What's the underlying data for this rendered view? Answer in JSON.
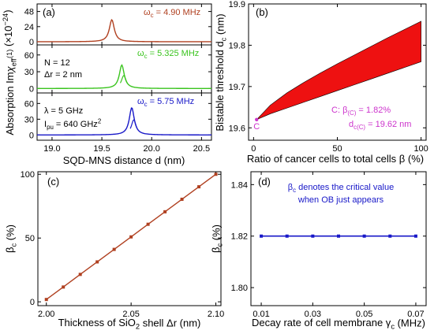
{
  "chart_data": [
    {
      "panel": "(a)",
      "type": "line",
      "xlabel": "SQD-MNS distance d (nm)",
      "ylabel_prefix": "Absorption Im",
      "ylabel_chi": "χ",
      "ylabel_sub": "eff",
      "ylabel_sup": "(1)",
      "ylabel_unit": " (×10",
      "ylabel_unit_sup": "−24",
      "ylabel_unit_end": ")",
      "xlim": [
        18.85,
        20.6
      ],
      "x_ticks": [
        "19.0",
        "19.5",
        "20.0",
        "20.5"
      ],
      "x_tick_values": [
        19.0,
        19.5,
        20.0,
        20.5
      ],
      "params": {
        "N": "N = 12",
        "dr": "Δr = 2 nm",
        "lambda": "λ = 5 GHz",
        "ipu_prefix": "I",
        "ipu_sub": "pu",
        "ipu_value": " = 640 GHz",
        "ipu_sup": "2"
      },
      "subplots": [
        {
          "omega_prefix": "ω",
          "omega_sub": "c",
          "omega_value": " = 4.90 MHz",
          "color": "#b04020",
          "ylim": [
            -5,
            60
          ],
          "y_ticks": [
            "0",
            "24",
            "48"
          ],
          "y_tick_values": [
            0,
            24,
            48
          ],
          "peak_x": 19.6,
          "peak_y": 35
        },
        {
          "omega_prefix": "ω",
          "omega_sub": "c",
          "omega_value": " = 5.325 MHz",
          "color": "#3ac41e",
          "ylim": [
            -8,
            78
          ],
          "y_ticks": [
            "0",
            "30",
            "60"
          ],
          "y_tick_values": [
            0,
            30,
            60
          ],
          "peak_x": 19.7,
          "peak_y": 42
        },
        {
          "omega_prefix": "ω",
          "omega_sub": "c",
          "omega_value": " = 5.75 MHz",
          "color": "#1818c8",
          "ylim": [
            -10,
            80
          ],
          "y_ticks": [
            "0",
            "30",
            "60"
          ],
          "y_tick_values": [
            0,
            30,
            60
          ],
          "peak_x": 19.8,
          "peak_y": 52
        }
      ]
    },
    {
      "panel": "(b)",
      "type": "area",
      "xlabel": "Ratio of cancer cells to total cells β (%)",
      "ylabel_prefix": "Bistable threshold d",
      "ylabel_sub": "c",
      "ylabel_unit": " (nm)",
      "xlim": [
        -3,
        103
      ],
      "ylim": [
        19.57,
        19.9
      ],
      "x_ticks": [
        "0",
        "50",
        "100"
      ],
      "x_tick_values": [
        0,
        50,
        100
      ],
      "y_ticks": [
        "19.6",
        "19.7",
        "19.8",
        "19.9"
      ],
      "y_tick_values": [
        19.6,
        19.7,
        19.8,
        19.9
      ],
      "color": "#ee1111",
      "upper": {
        "x": [
          1.82,
          10,
          20,
          30,
          40,
          50,
          60,
          70,
          80,
          90,
          100
        ],
        "y": [
          19.62,
          19.655,
          19.685,
          19.71,
          19.733,
          19.755,
          19.776,
          19.797,
          19.818,
          19.838,
          19.858
        ]
      },
      "lower": {
        "x": [
          1.82,
          10,
          20,
          30,
          40,
          50,
          60,
          70,
          80,
          90,
          100
        ],
        "y": [
          19.62,
          19.634,
          19.648,
          19.662,
          19.676,
          19.69,
          19.704,
          19.718,
          19.732,
          19.746,
          19.76
        ]
      },
      "point_label": "C",
      "annotation": {
        "c_label": "C:",
        "beta_prefix": "β",
        "beta_sub": "(C)",
        "beta_value": " = 1.82%",
        "d_prefix": "d",
        "d_sub": "c(C)",
        "d_value": " = 19.62 nm",
        "color": "#cc33cc"
      }
    },
    {
      "panel": "(c)",
      "type": "line",
      "xlabel_prefix": "Thickness of SiO",
      "xlabel_sub": "2",
      "xlabel_suffix": " shell Δr (nm)",
      "ylabel_prefix": "β",
      "ylabel_sub": "c",
      "ylabel_unit": " (%)",
      "xlim": [
        1.995,
        2.103
      ],
      "ylim": [
        -3,
        102
      ],
      "x_ticks": [
        "2.00",
        "2.05",
        "2.10"
      ],
      "x_tick_values": [
        2.0,
        2.05,
        2.1
      ],
      "y_ticks": [
        "0",
        "50",
        "100"
      ],
      "y_tick_values": [
        0,
        50,
        100
      ],
      "color": "#b04020",
      "x": [
        2.0,
        2.01,
        2.02,
        2.03,
        2.04,
        2.05,
        2.06,
        2.07,
        2.08,
        2.09,
        2.1
      ],
      "values": [
        1.82,
        11.6,
        21.5,
        31.3,
        41.1,
        50.9,
        60.8,
        70.6,
        80.4,
        90.2,
        100
      ]
    },
    {
      "panel": "(d)",
      "type": "line",
      "xlabel_prefix": "Decay rate of cell membrane γ",
      "xlabel_sub": "c",
      "xlabel_suffix": " (MHz)",
      "ylabel_prefix": "β",
      "ylabel_sub": "c",
      "ylabel_unit": " (%)",
      "xlim": [
        0.006,
        0.074
      ],
      "ylim": [
        1.793,
        1.845
      ],
      "x_ticks": [
        "0.01",
        "0.03",
        "0.05",
        "0.07"
      ],
      "x_tick_values": [
        0.01,
        0.03,
        0.05,
        0.07
      ],
      "y_ticks": [
        "1.80",
        "1.82",
        "1.84"
      ],
      "y_tick_values": [
        1.8,
        1.82,
        1.84
      ],
      "color": "#1818c8",
      "x": [
        0.01,
        0.02,
        0.03,
        0.04,
        0.05,
        0.06,
        0.07
      ],
      "values": [
        1.82,
        1.82,
        1.82,
        1.82,
        1.82,
        1.82,
        1.82
      ],
      "note_prefix": "β",
      "note_sub": "c",
      "note_line1": " denotes the critical value",
      "note_line2": "when OB just appears"
    }
  ]
}
